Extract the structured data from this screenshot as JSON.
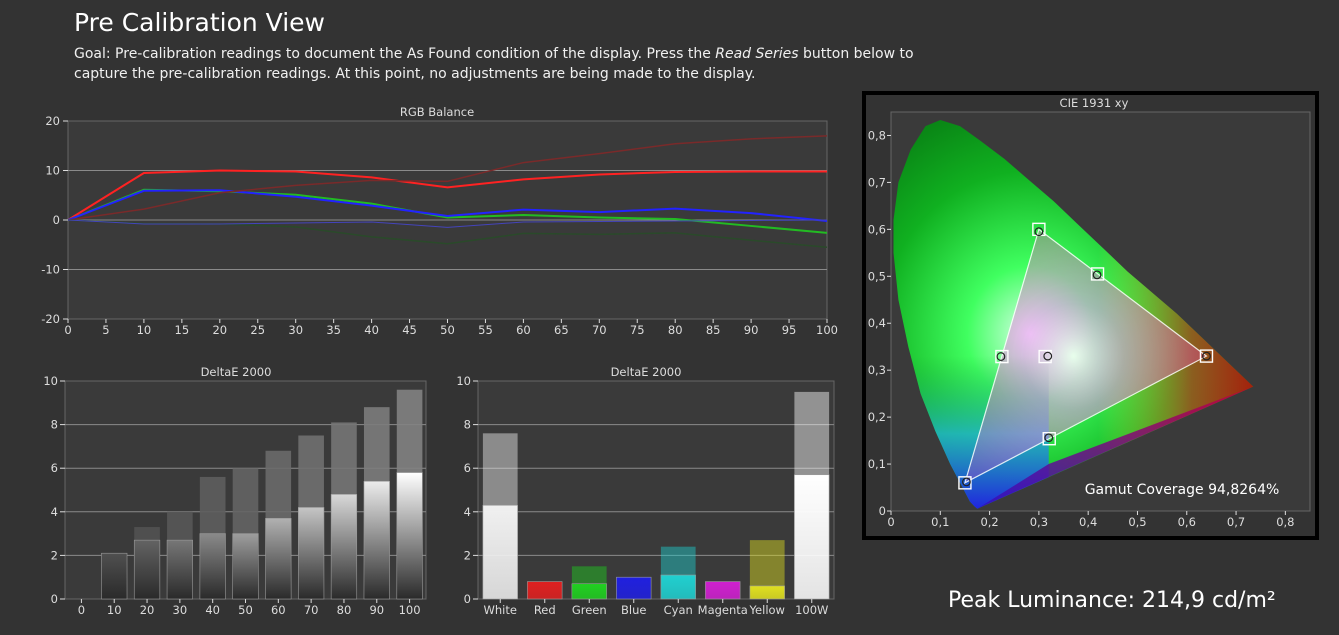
{
  "header": {
    "title": "Pre Calibration View",
    "goal_part1": "Goal: Pre-calibration readings to document the As Found condition of the display. Press the ",
    "goal_italic": "Read Series",
    "goal_part2": " button below to capture the pre-calibration readings. At this point, no adjustments are being made to the display."
  },
  "peak": "Peak Luminance: 214,9 cd/m²",
  "colors": {
    "bg": "#333333",
    "plot_bg": "#3a3a3a",
    "red": "#ff2020",
    "green": "#20b020",
    "blue": "#2222ee"
  },
  "chart_data": [
    {
      "type": "line",
      "title": "RGB Balance",
      "x": [
        0,
        10,
        20,
        30,
        40,
        50,
        60,
        70,
        80,
        90,
        100
      ],
      "xticks": [
        0,
        5,
        10,
        15,
        20,
        25,
        30,
        35,
        40,
        45,
        50,
        55,
        60,
        65,
        70,
        75,
        80,
        85,
        90,
        95,
        100
      ],
      "xlim": [
        0,
        100
      ],
      "ylim": [
        -20,
        20
      ],
      "yticks": [
        -20,
        -10,
        0,
        10,
        20
      ],
      "series": [
        {
          "color": "#ff2222",
          "width": 2,
          "values": [
            0,
            9.5,
            10,
            9.8,
            8.6,
            6.6,
            8.2,
            9.2,
            9.7,
            9.8,
            9.8
          ]
        },
        {
          "color": "#22bb22",
          "width": 2,
          "values": [
            0,
            6.1,
            5.8,
            5.1,
            3.3,
            0.5,
            1.0,
            0.5,
            0.2,
            -1.2,
            -2.6
          ]
        },
        {
          "color": "#2222ff",
          "width": 2,
          "values": [
            0,
            5.9,
            6.0,
            4.7,
            2.9,
            0.8,
            2.1,
            1.6,
            2.3,
            1.4,
            -0.2
          ]
        },
        {
          "color": "#7a2a2a",
          "width": 1.5,
          "values": [
            0,
            2.2,
            5.5,
            7.0,
            8.0,
            7.8,
            11.6,
            13.4,
            15.4,
            16.4,
            17.0
          ]
        },
        {
          "color": "#2a4a2a",
          "width": 1.5,
          "values": [
            0,
            -0.7,
            -0.8,
            -1.4,
            -3.4,
            -4.8,
            -2.7,
            -2.9,
            -2.6,
            -4.1,
            -5.5
          ]
        },
        {
          "color": "#4444bb",
          "width": 1,
          "values": [
            0,
            -0.8,
            -0.8,
            -0.6,
            -0.4,
            -1.5,
            -0.4,
            -0.3,
            -0.2,
            -0.1,
            0
          ]
        }
      ]
    },
    {
      "type": "bar",
      "title": "DeltaE 2000",
      "categories": [
        "0",
        "10",
        "20",
        "30",
        "40",
        "50",
        "60",
        "70",
        "80",
        "90",
        "100"
      ],
      "ylim": [
        0,
        10
      ],
      "yticks": [
        0,
        2,
        4,
        6,
        8,
        10
      ],
      "values_low": [
        0,
        2.1,
        2.7,
        2.7,
        3.0,
        3.0,
        3.7,
        4.2,
        4.8,
        5.4,
        5.8
      ],
      "values_high": [
        0,
        2.0,
        3.3,
        4.0,
        5.6,
        6.0,
        6.8,
        7.5,
        8.1,
        8.8,
        9.6
      ]
    },
    {
      "type": "bar",
      "title": "DeltaE 2000",
      "categories": [
        "White",
        "Red",
        "Green",
        "Blue",
        "Cyan",
        "Magenta",
        "Yellow",
        "100W"
      ],
      "ylim": [
        0,
        10
      ],
      "yticks": [
        0,
        2,
        4,
        6,
        8,
        10
      ],
      "values_low": [
        4.3,
        0.8,
        0.7,
        1.0,
        1.1,
        0.8,
        0.6,
        5.7
      ],
      "values_high": [
        7.6,
        0.8,
        1.5,
        1.0,
        2.4,
        0.8,
        2.7,
        9.5
      ],
      "bar_colors": [
        "#f0f0f0",
        "#e02020",
        "#20d020",
        "#2020e0",
        "#20d0d0",
        "#d020d0",
        "#e0e020",
        "#ffffff"
      ]
    },
    {
      "type": "scatter",
      "title": "CIE 1931 xy",
      "xlim": [
        0,
        0.85
      ],
      "ylim": [
        0,
        0.85
      ],
      "xticks": [
        "0",
        "0,1",
        "0,2",
        "0,3",
        "0,4",
        "0,5",
        "0,6",
        "0,7",
        "0,8"
      ],
      "yticks": [
        "0",
        "0,1",
        "0,2",
        "0,3",
        "0,4",
        "0,5",
        "0,6",
        "0,7",
        "0,8"
      ],
      "targets": [
        {
          "x": 0.64,
          "y": 0.33
        },
        {
          "x": 0.3,
          "y": 0.6
        },
        {
          "x": 0.15,
          "y": 0.06
        },
        {
          "x": 0.225,
          "y": 0.329
        },
        {
          "x": 0.321,
          "y": 0.154
        },
        {
          "x": 0.419,
          "y": 0.505
        },
        {
          "x": 0.3127,
          "y": 0.329
        }
      ],
      "measured": [
        {
          "x": 0.64,
          "y": 0.33
        },
        {
          "x": 0.3,
          "y": 0.595
        },
        {
          "x": 0.153,
          "y": 0.062
        },
        {
          "x": 0.223,
          "y": 0.329
        },
        {
          "x": 0.32,
          "y": 0.156
        },
        {
          "x": 0.418,
          "y": 0.503
        },
        {
          "x": 0.318,
          "y": 0.33
        }
      ],
      "gamut_coverage": "Gamut Coverage 94,8264%"
    }
  ]
}
